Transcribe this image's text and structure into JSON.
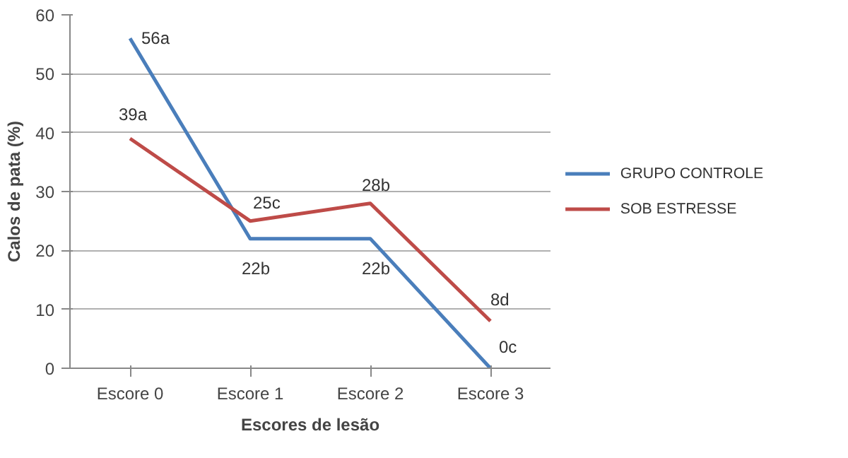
{
  "chart_data": {
    "type": "line",
    "xlabel": "Escores de lesão",
    "ylabel": "Calos de pata (%)",
    "categories": [
      "Escore 0",
      "Escore 1",
      "Escore 2",
      "Escore 3"
    ],
    "series": [
      {
        "name": "GRUPO CONTROLE",
        "color": "#4a7ebb",
        "values": [
          56,
          22,
          22,
          0
        ],
        "value_labels": [
          "56a",
          "22b",
          "22b",
          "0c"
        ]
      },
      {
        "name": "SOB ESTRESSE",
        "color": "#be4b48",
        "values": [
          39,
          25,
          28,
          8
        ],
        "value_labels": [
          "39a",
          "25c",
          "28b",
          "8d"
        ]
      }
    ],
    "ylim": [
      0,
      60
    ],
    "yticks": [
      0,
      10,
      20,
      30,
      40,
      50,
      60
    ],
    "grid": "y",
    "legend": "right",
    "marker": "none",
    "line_style": "solid"
  }
}
